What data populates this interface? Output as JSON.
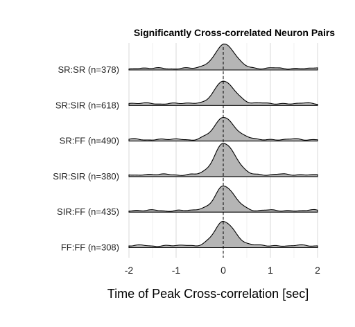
{
  "chart_data": {
    "type": "area",
    "subtype": "ridgeline",
    "title": "Significantly Cross-correlated Neuron Pairs",
    "xlabel": "Time of Peak Cross-correlation [sec]",
    "ylabel": "",
    "xlim": [
      -2,
      2
    ],
    "x_ticks": [
      -2,
      -1,
      0,
      1,
      2
    ],
    "x_tick_labels": [
      "-2",
      "-1",
      "0",
      "1",
      "2"
    ],
    "reference_line": {
      "x": 0,
      "style": "dashed"
    },
    "grid": true,
    "fill_color": "#b5b5b5",
    "series": [
      {
        "name": "SR:SR (n=378)",
        "peak": 0.0,
        "baseline": 0.04,
        "peak_height": 0.6
      },
      {
        "name": "SR:SIR (n=618)",
        "peak": 0.0,
        "baseline": 0.05,
        "peak_height": 0.55
      },
      {
        "name": "SR:FF (n=490)",
        "peak": 0.0,
        "baseline": 0.04,
        "peak_height": 0.55
      },
      {
        "name": "SIR:SIR (n=380)",
        "peak": 0.0,
        "baseline": 0.05,
        "peak_height": 0.8
      },
      {
        "name": "SIR:FF (n=435)",
        "peak": 0.0,
        "baseline": 0.04,
        "peak_height": 0.6
      },
      {
        "name": "FF:FF (n=308)",
        "peak": 0.0,
        "baseline": 0.05,
        "peak_height": 0.6
      }
    ]
  }
}
